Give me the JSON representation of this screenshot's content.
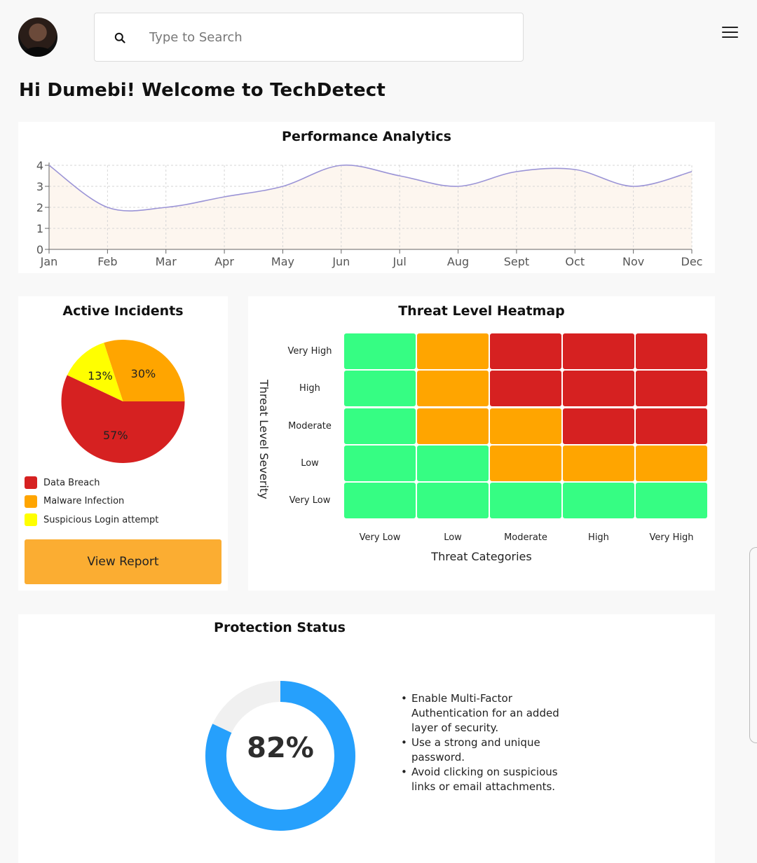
{
  "header": {
    "search_placeholder": "Type to Search",
    "greeting": "Hi Dumebi! Welcome to TechDetect"
  },
  "performance": {
    "title": "Performance Analytics",
    "chart_data": {
      "type": "area",
      "title": "Performance Analytics",
      "categories": [
        "Jan",
        "Feb",
        "Mar",
        "Apr",
        "May",
        "Jun",
        "Jul",
        "Aug",
        "Sept",
        "Oct",
        "Nov",
        "Dec"
      ],
      "values": [
        4,
        2,
        2,
        2.5,
        3,
        4,
        3.5,
        3,
        3.7,
        3.8,
        3,
        3.7
      ],
      "y_ticks": [
        0,
        1,
        2,
        3,
        4
      ],
      "ylim": [
        0,
        4
      ],
      "grid": true,
      "line_color": "#9b94d6",
      "fill_color": "#fdf6ef"
    }
  },
  "incidents": {
    "title": "Active Incidents",
    "chart_data": {
      "type": "pie",
      "slices": [
        {
          "label": "Data Breach",
          "value": 57,
          "text": "57%",
          "color": "#d62121"
        },
        {
          "label": "Malware Infection",
          "value": 30,
          "text": "30%",
          "color": "#ffa500"
        },
        {
          "label": "Suspicious Login attempt",
          "value": 13,
          "text": "13%",
          "color": "#ffff00"
        }
      ]
    },
    "legend": [
      {
        "label": "Data Breach",
        "color": "#d62121"
      },
      {
        "label": "Malware Infection",
        "color": "#ffa500"
      },
      {
        "label": "Suspicious Login attempt",
        "color": "#ffff00"
      }
    ],
    "button_label": "View Report"
  },
  "heatmap": {
    "title": "Threat Level Heatmap",
    "chart_data": {
      "type": "heatmap",
      "x_categories": [
        "Very Low",
        "Low",
        "Moderate",
        "High",
        "Very High"
      ],
      "y_categories": [
        "Very High",
        "High",
        "Moderate",
        "Low",
        "Very Low"
      ],
      "xlabel": "Threat Categories",
      "ylabel": "Threat Level Severity",
      "values": [
        [
          "low",
          "medium",
          "high",
          "high",
          "high"
        ],
        [
          "low",
          "medium",
          "high",
          "high",
          "high"
        ],
        [
          "low",
          "medium",
          "medium",
          "high",
          "high"
        ],
        [
          "low",
          "low",
          "medium",
          "medium",
          "medium"
        ],
        [
          "low",
          "low",
          "low",
          "low",
          "low"
        ]
      ],
      "colors": {
        "low": "#36fd83",
        "medium": "#ffa500",
        "high": "#d62121"
      }
    }
  },
  "protection": {
    "title": "Protection Status",
    "value": 82,
    "value_text": "82%",
    "color": "#26a0fc",
    "track_color": "#f0f0f0",
    "tips": [
      "Enable Multi-Factor Authentication for an added layer of security.",
      "Use a strong and unique password.",
      "Avoid clicking on suspicious links or email attachments."
    ]
  }
}
